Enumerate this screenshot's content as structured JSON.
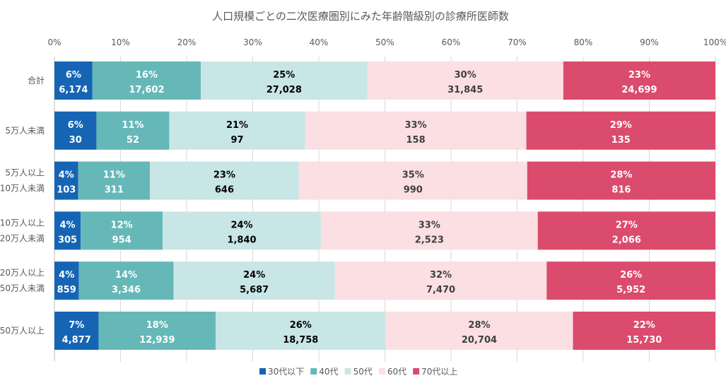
{
  "chart_data": {
    "type": "bar",
    "orientation": "horizontal",
    "stacked": "percent",
    "title": "人口規模ごとの二次医療圏別にみた年齢階級別の診療所医師数",
    "xlim": [
      0,
      100
    ],
    "x_ticks": [
      "0%",
      "10%",
      "20%",
      "30%",
      "40%",
      "50%",
      "60%",
      "70%",
      "80%",
      "90%",
      "100%"
    ],
    "categories": [
      [
        "合計"
      ],
      [
        "5万人未満"
      ],
      [
        "5万人以上",
        "10万人未満"
      ],
      [
        "10万人以上",
        "20万人未満"
      ],
      [
        "20万人以上",
        "50万人未満"
      ],
      [
        "50万人以上"
      ]
    ],
    "series": [
      {
        "name": "30代以下",
        "color": "#1565b4",
        "label_color": "#ffffff",
        "pct": [
          "6%",
          "6%",
          "4%",
          "4%",
          "4%",
          "7%"
        ],
        "values": [
          6174,
          30,
          103,
          305,
          859,
          4877
        ],
        "value_labels": [
          "6,174",
          "30",
          "103",
          "305",
          "859",
          "4,877"
        ]
      },
      {
        "name": "40代",
        "color": "#66b8b8",
        "label_color": "#ffffff",
        "pct": [
          "16%",
          "11%",
          "11%",
          "12%",
          "14%",
          "18%"
        ],
        "values": [
          17602,
          52,
          311,
          954,
          3346,
          12939
        ],
        "value_labels": [
          "17,602",
          "52",
          "311",
          "954",
          "3,346",
          "12,939"
        ]
      },
      {
        "name": "50代",
        "color": "#c9e6e6",
        "label_color": "#000000",
        "pct": [
          "25%",
          "21%",
          "23%",
          "24%",
          "24%",
          "26%"
        ],
        "values": [
          27028,
          97,
          646,
          1840,
          5687,
          18758
        ],
        "value_labels": [
          "27,028",
          "97",
          "646",
          "1,840",
          "5,687",
          "18,758"
        ]
      },
      {
        "name": "60代",
        "color": "#fbdfe3",
        "label_color": "#404040",
        "pct": [
          "30%",
          "33%",
          "35%",
          "33%",
          "32%",
          "28%"
        ],
        "values": [
          31845,
          158,
          990,
          2523,
          7470,
          20704
        ],
        "value_labels": [
          "31,845",
          "158",
          "990",
          "2,523",
          "7,470",
          "20,704"
        ]
      },
      {
        "name": "70代以上",
        "color": "#db4b6d",
        "label_color": "#ffffff",
        "pct": [
          "23%",
          "29%",
          "28%",
          "27%",
          "26%",
          "22%"
        ],
        "values": [
          24699,
          135,
          816,
          2066,
          5952,
          15730
        ],
        "value_labels": [
          "24,699",
          "135",
          "816",
          "2,066",
          "5,952",
          "15,730"
        ]
      }
    ],
    "legend_position": "bottom",
    "grid": true
  }
}
